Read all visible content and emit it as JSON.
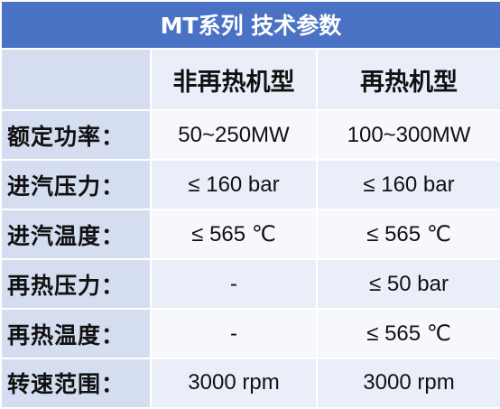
{
  "table": {
    "title": "MT系列 技术参数",
    "columns": [
      "非再热机型",
      "再热机型"
    ],
    "rows": [
      {
        "label": "额定功率：",
        "values": [
          "50~250MW",
          "100~300MW"
        ]
      },
      {
        "label": "进汽压力：",
        "values": [
          "≤ 160 bar",
          "≤ 160 bar"
        ]
      },
      {
        "label": "进汽温度：",
        "values": [
          "≤ 565 ℃",
          "≤ 565 ℃"
        ]
      },
      {
        "label": "再热压力：",
        "values": [
          "-",
          "≤ 50 bar"
        ]
      },
      {
        "label": "再热温度：",
        "values": [
          "-",
          "≤ 565 ℃"
        ]
      },
      {
        "label": "转速范围：",
        "values": [
          "3000 rpm",
          "3000 rpm"
        ]
      }
    ]
  },
  "colors": {
    "title_bg": "#4a72c4",
    "label_bg": "#d4def0",
    "row_light": "#f6f8fc",
    "row_mid": "#e9eef8"
  }
}
